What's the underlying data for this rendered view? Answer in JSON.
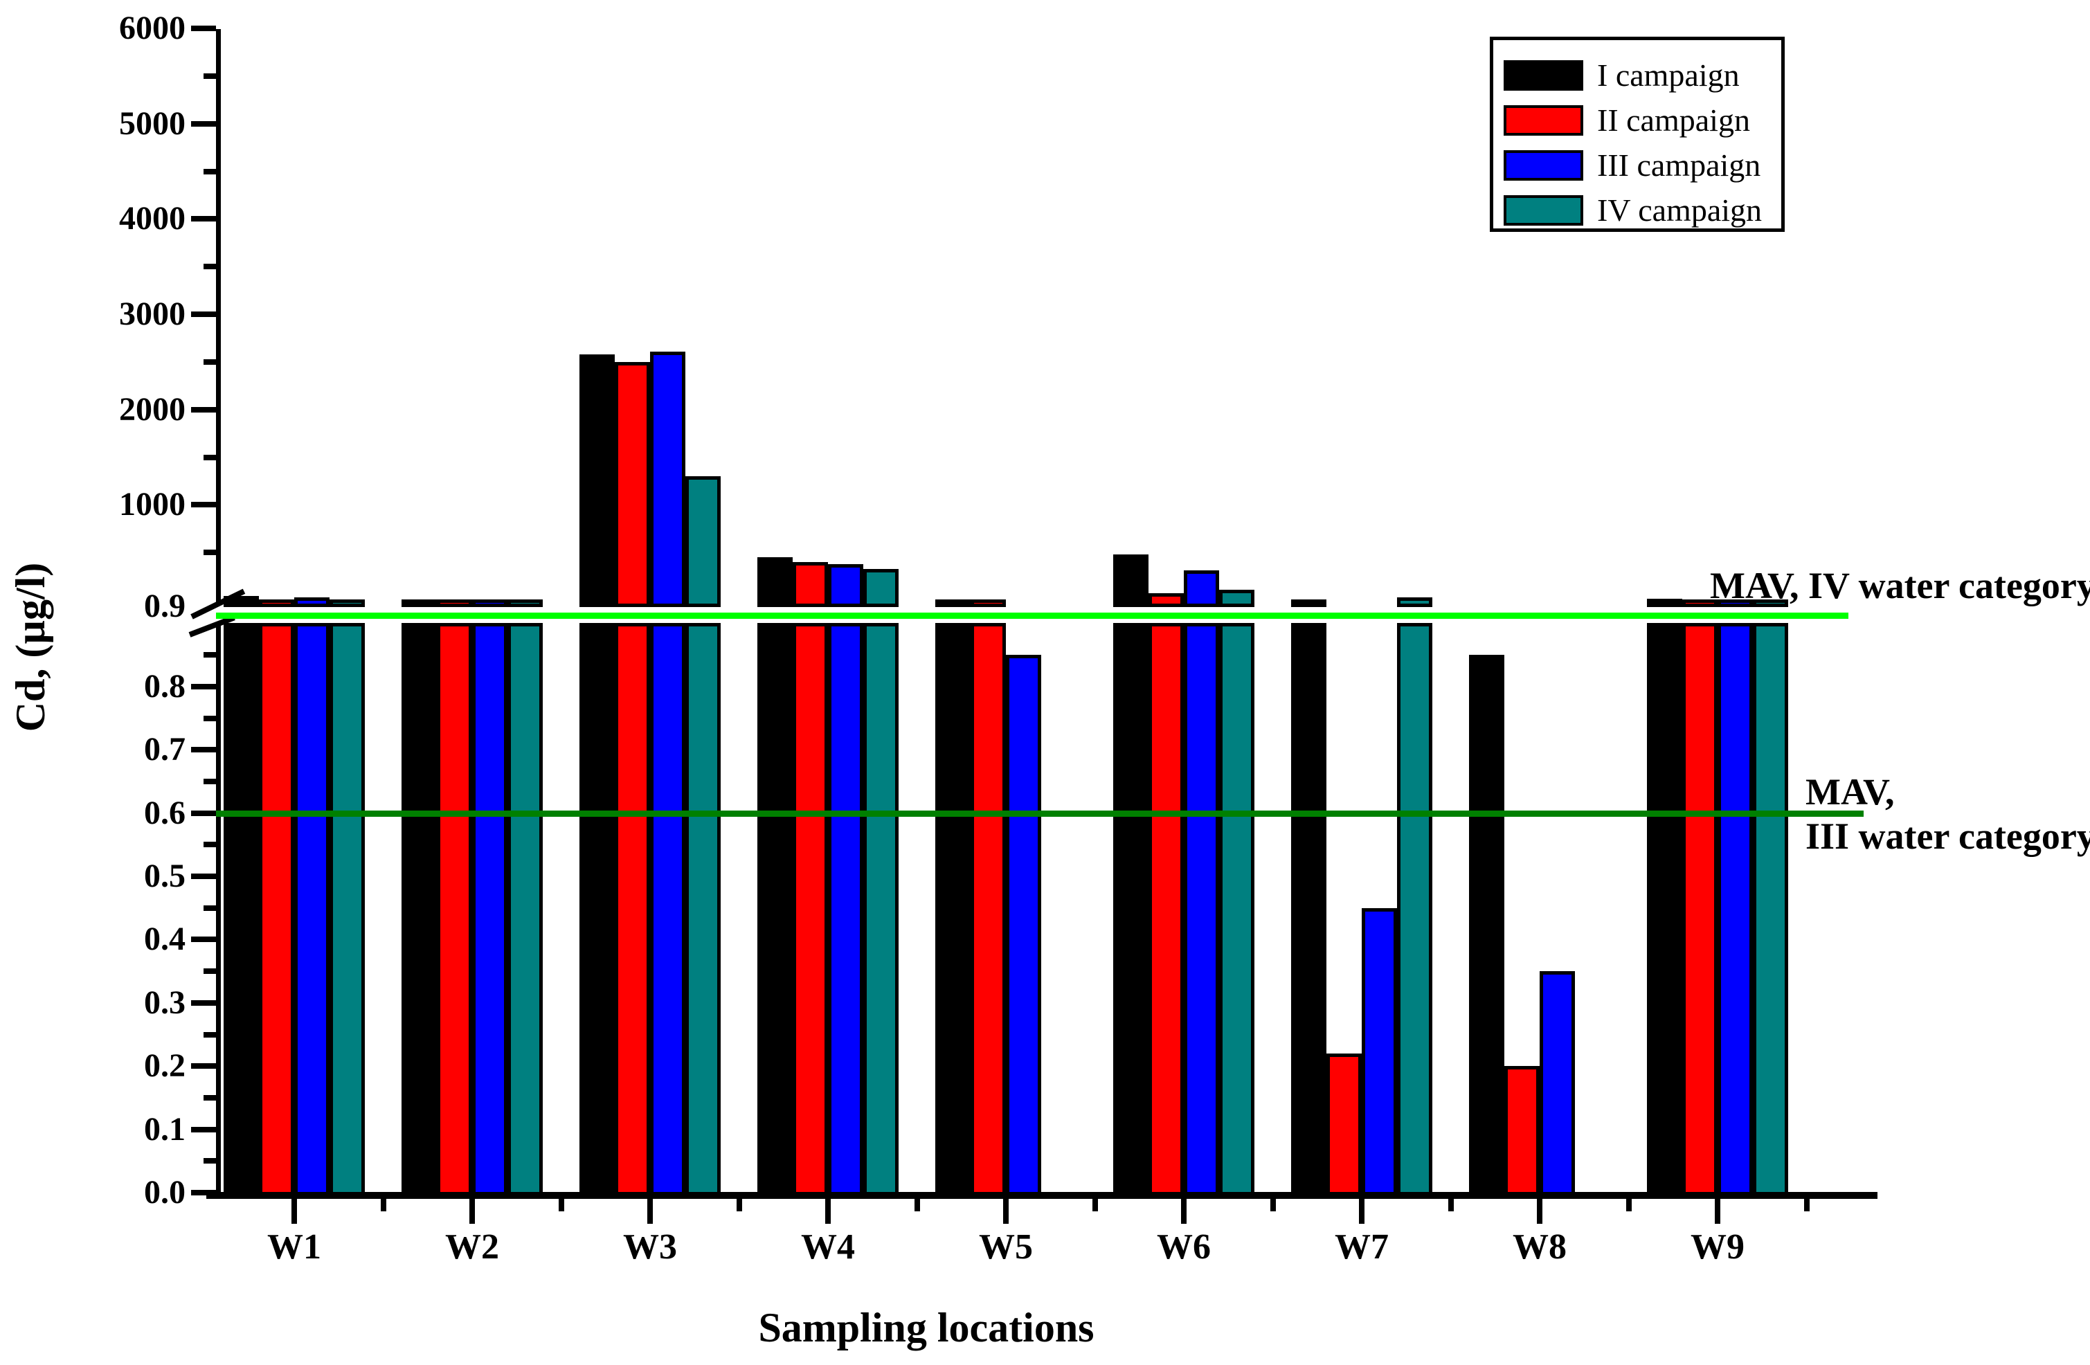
{
  "figure": {
    "background": "#ffffff"
  },
  "chart_data": {
    "type": "bar",
    "title": "",
    "xlabel": "Sampling locations",
    "ylabel": "Cd, (µg/l)",
    "units": "µg/l",
    "categories": [
      "W1",
      "W2",
      "W3",
      "W4",
      "W5",
      "W6",
      "W7",
      "W8",
      "W9"
    ],
    "series": [
      {
        "name": "I campaign",
        "color": "#000000",
        "values": [
          40,
          10,
          2580,
          450,
          0.95,
          480,
          10,
          0.85,
          15
        ]
      },
      {
        "name": "II campaign",
        "color": "#ff0000",
        "values": [
          10,
          5,
          2500,
          400,
          0.95,
          70,
          0.22,
          0.2,
          5
        ]
      },
      {
        "name": "III campaign",
        "color": "#0000ff",
        "values": [
          30,
          5,
          2610,
          380,
          0.85,
          310,
          0.45,
          0.35,
          5
        ]
      },
      {
        "name": "IV campaign",
        "color": "#008080",
        "values": [
          5,
          5,
          1300,
          330,
          0,
          110,
          30,
          0,
          10
        ]
      }
    ],
    "y_axis": {
      "broken": true,
      "top_segment": {
        "tick_labels": [
          "6000",
          "5000",
          "4000",
          "3000",
          "2000",
          "1000"
        ],
        "tick_values": [
          6000,
          5000,
          4000,
          3000,
          2000,
          1000
        ],
        "minor_tick_values": [
          5500,
          4500,
          3500,
          2500,
          1500,
          500
        ],
        "range": [
          0,
          6000
        ]
      },
      "bottom_segment": {
        "break_label": "0.9",
        "tick_labels": [
          "0.8",
          "0.7",
          "0.6",
          "0.5",
          "0.4",
          "0.3",
          "0.2",
          "0.1",
          "0.0"
        ],
        "tick_values": [
          0.8,
          0.7,
          0.6,
          0.5,
          0.4,
          0.3,
          0.2,
          0.1,
          0.0
        ],
        "minor_tick_values": [
          0.85,
          0.75,
          0.65,
          0.55,
          0.45,
          0.35,
          0.25,
          0.15,
          0.05
        ],
        "range": [
          0,
          0.9
        ]
      }
    },
    "reference_lines": [
      {
        "name": "mav-iv",
        "value": 0.9,
        "color": "#00ff00",
        "label_lines": [
          "MAV, IV water category"
        ]
      },
      {
        "name": "mav-iii",
        "value": 0.6,
        "color": "#008000",
        "label_lines": [
          "MAV,",
          "III water category"
        ]
      }
    ],
    "legend": {
      "items": [
        {
          "label": "I campaign",
          "color": "#000000"
        },
        {
          "label": "II campaign",
          "color": "#ff0000"
        },
        {
          "label": "III campaign",
          "color": "#0000ff"
        },
        {
          "label": "IV campaign",
          "color": "#008080"
        }
      ]
    },
    "grid": false,
    "legend_position": "top-right"
  }
}
